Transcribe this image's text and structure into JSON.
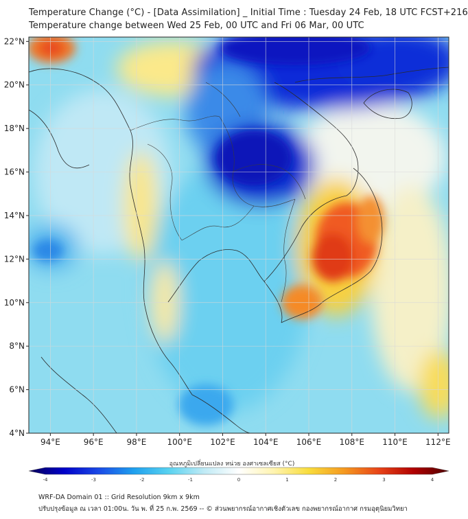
{
  "header": {
    "title": "Temperature Change (°C) - [Data Assimilation] _ Initial Time : Tuesday 24 Feb, 18 UTC FCST+216",
    "subtitle": "Temperature change between Wed 25 Feb, 00 UTC and Fri 06 Mar, 00 UTC"
  },
  "map": {
    "lon_range": [
      93,
      112.5
    ],
    "lat_range": [
      4,
      22.2
    ],
    "x_ticks": [
      "94°E",
      "96°E",
      "98°E",
      "100°E",
      "102°E",
      "104°E",
      "106°E",
      "108°E",
      "110°E",
      "112°E"
    ],
    "y_ticks": [
      "22°N",
      "20°N",
      "18°N",
      "16°N",
      "14°N",
      "12°N",
      "10°N",
      "8°N",
      "6°N",
      "4°N"
    ],
    "grid": true,
    "colors": {
      "ocean_base": "#8fdcf0",
      "cold_strong": "#0a1fd0",
      "cold": "#1a6ae0",
      "warm": "#f7d93c",
      "hot": "#e8361a",
      "land_neutral": "#e6f2f7"
    }
  },
  "colorbar": {
    "label": "อุณหภูมิเปลี่ยนแปลง หน่วย องศาเซลเซียส (°C)",
    "ticks": [
      "-4",
      "-3",
      "-2",
      "-1",
      "0",
      "1",
      "2",
      "3",
      "4"
    ],
    "colors": [
      "#080058",
      "#0000c8",
      "#1a4ae6",
      "#1fa0ee",
      "#59d2f0",
      "#bfeaf5",
      "#ffffff",
      "#fff4b0",
      "#f8dc3c",
      "#f59a20",
      "#e84418",
      "#b00000",
      "#500000"
    ]
  },
  "footer": {
    "line1": "WRF-DA Domain 01 :: Grid Resolution 9km x 9km",
    "line2": "ปรับปรุงข้อมูล ณ เวลา 01:00น. วัน พ. ที่ 25 ก.พ. 2569 -- © ส่วนพยากรณ์อากาศเชิงตัวเลข กองพยากรณ์อากาศ กรมอุตุนิยมวิทยา"
  }
}
